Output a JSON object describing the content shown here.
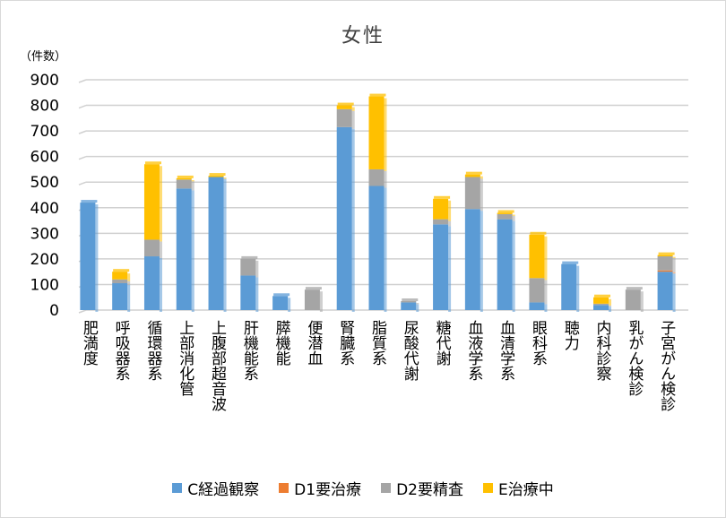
{
  "chart_data": {
    "type": "bar",
    "stacked": true,
    "title": "女性",
    "ylabel": "（件数）",
    "ylim": [
      0,
      900
    ],
    "yticks": [
      0,
      100,
      200,
      300,
      400,
      500,
      600,
      700,
      800,
      900
    ],
    "grid": true,
    "legend_position": "bottom",
    "categories": [
      "肥満度",
      "呼吸器系",
      "循環器系",
      "上部消化管",
      "上腹部超音波",
      "肝機能系",
      "膵機能",
      "便潜血",
      "腎臓系",
      "脂質系",
      "尿酸代謝",
      "糖代謝",
      "血液学系",
      "血清学系",
      "眼科系",
      "聴力",
      "内科診察",
      "乳がん検診",
      "子宮がん検診"
    ],
    "series": [
      {
        "name": "C経過観察",
        "color": "#5b9bd5",
        "values": [
          420,
          105,
          210,
          475,
          520,
          135,
          55,
          0,
          715,
          485,
          30,
          335,
          395,
          355,
          30,
          180,
          20,
          0,
          150
        ]
      },
      {
        "name": "D1要治療",
        "color": "#ed7d31",
        "values": [
          0,
          0,
          0,
          0,
          0,
          0,
          0,
          0,
          0,
          0,
          0,
          0,
          0,
          0,
          0,
          0,
          0,
          0,
          5
        ]
      },
      {
        "name": "D2要精査",
        "color": "#a5a5a5",
        "values": [
          0,
          15,
          65,
          35,
          0,
          65,
          0,
          80,
          70,
          65,
          5,
          20,
          125,
          20,
          95,
          0,
          5,
          80,
          55
        ]
      },
      {
        "name": "E治療中",
        "color": "#ffc000",
        "values": [
          0,
          30,
          295,
          5,
          5,
          0,
          0,
          0,
          15,
          285,
          0,
          80,
          10,
          5,
          170,
          0,
          25,
          0,
          5
        ]
      }
    ]
  }
}
